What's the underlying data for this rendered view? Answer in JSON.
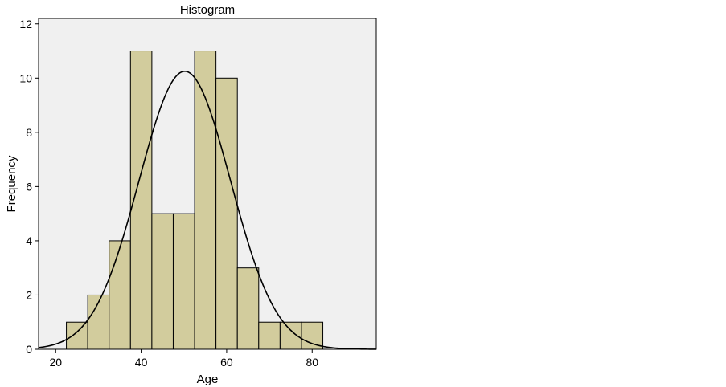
{
  "chart_data": {
    "type": "bar",
    "title": "Histogram",
    "xlabel": "Age",
    "ylabel": "Frequency",
    "bin_width": 5,
    "bins": [
      {
        "start": 22.5,
        "end": 27.5,
        "count": 1
      },
      {
        "start": 27.5,
        "end": 32.5,
        "count": 2
      },
      {
        "start": 32.5,
        "end": 37.5,
        "count": 4
      },
      {
        "start": 37.5,
        "end": 42.5,
        "count": 11
      },
      {
        "start": 42.5,
        "end": 47.5,
        "count": 5
      },
      {
        "start": 47.5,
        "end": 52.5,
        "count": 5
      },
      {
        "start": 52.5,
        "end": 57.5,
        "count": 11
      },
      {
        "start": 57.5,
        "end": 62.5,
        "count": 10
      },
      {
        "start": 62.5,
        "end": 67.5,
        "count": 3
      },
      {
        "start": 67.5,
        "end": 72.5,
        "count": 1
      },
      {
        "start": 72.5,
        "end": 77.5,
        "count": 1
      },
      {
        "start": 77.5,
        "end": 82.5,
        "count": 1
      }
    ],
    "normal_curve": {
      "mean": 50.2,
      "std_dev": 10.7,
      "n": 55
    },
    "xlim": [
      16,
      95
    ],
    "ylim": [
      0,
      12.2
    ],
    "x_ticks": [
      20,
      40,
      60,
      80
    ],
    "y_ticks": [
      0,
      2,
      4,
      6,
      8,
      10,
      12
    ],
    "grid": false,
    "legend": "none",
    "colors": {
      "plot_background": "#f0f0f0",
      "bar_fill": "#d2cc9d",
      "bar_stroke": "#000000",
      "curve": "#000000"
    }
  }
}
